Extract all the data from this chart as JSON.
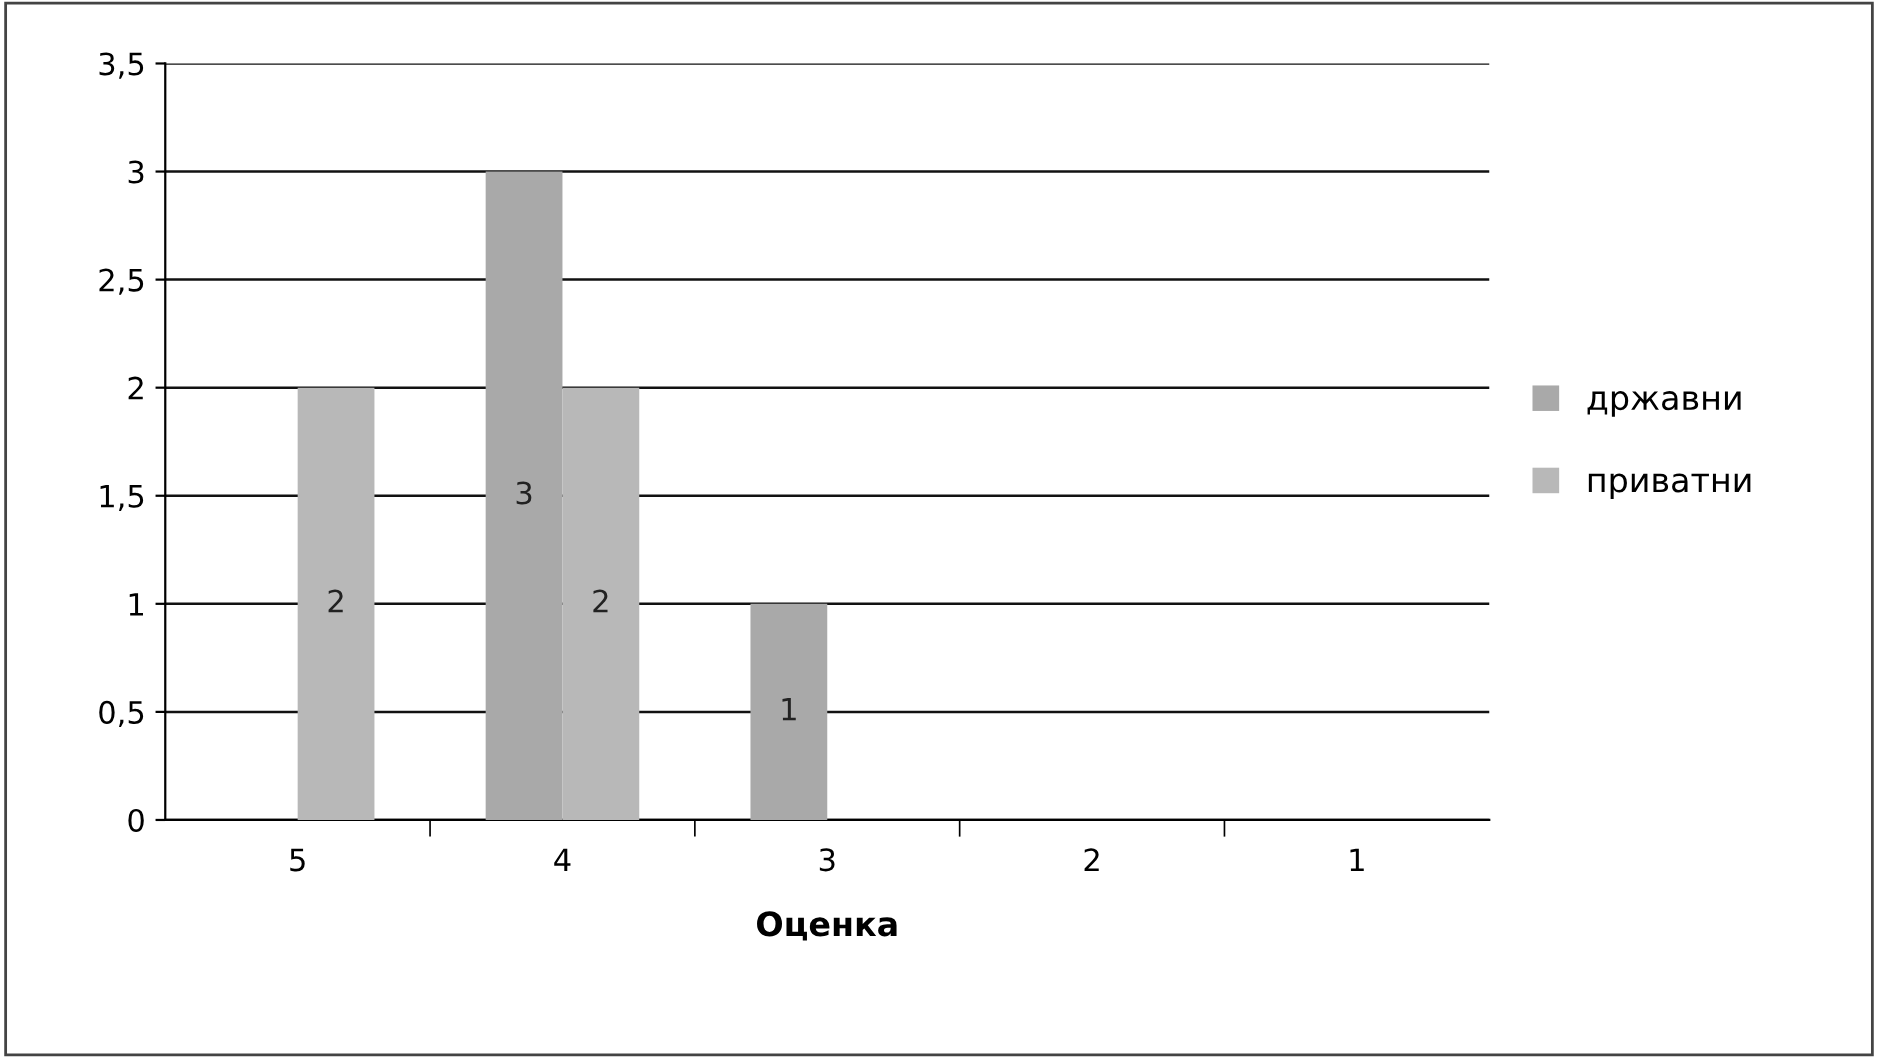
{
  "chart_data": {
    "type": "bar",
    "xlabel": "Оценка",
    "categories": [
      "5",
      "4",
      "3",
      "2",
      "1"
    ],
    "series": [
      {
        "name": "државни",
        "color": "#a9a9a9",
        "values": [
          null,
          3,
          1,
          null,
          null
        ]
      },
      {
        "name": "приватни",
        "color": "#b8b8b8",
        "values": [
          2,
          2,
          null,
          null,
          null
        ]
      }
    ],
    "ylim": [
      0,
      3.5
    ],
    "yticks": [
      {
        "value": 0,
        "label": "0"
      },
      {
        "value": 0.5,
        "label": "0,5"
      },
      {
        "value": 1,
        "label": "1"
      },
      {
        "value": 1.5,
        "label": "1,5"
      },
      {
        "value": 2,
        "label": "2"
      },
      {
        "value": 2.5,
        "label": "2,5"
      },
      {
        "value": 3,
        "label": "3"
      },
      {
        "value": 3.5,
        "label": "3,5"
      }
    ],
    "grid": "y",
    "legend": "right",
    "data_labels": true
  }
}
